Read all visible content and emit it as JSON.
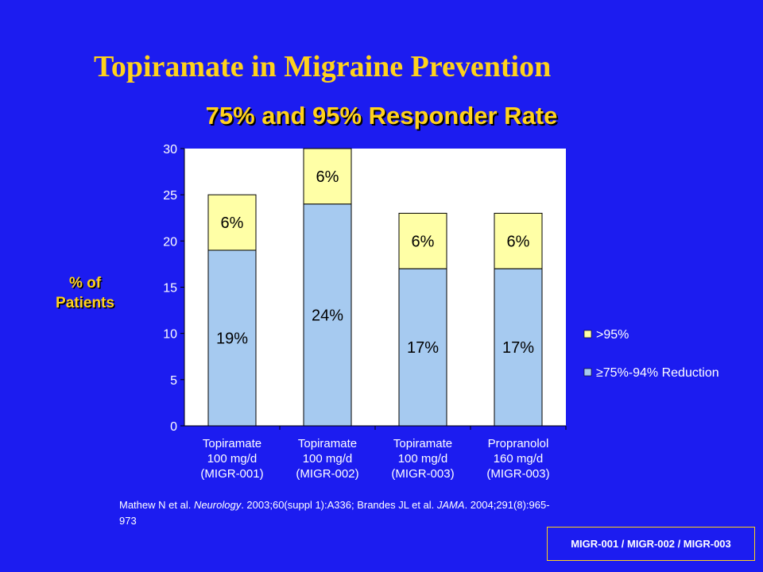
{
  "title": "Topiramate in Migraine Prevention",
  "citation": {
    "part1": "Mathew N et al. ",
    "journal1": "Neurology",
    "part2": ". 2003;60(suppl 1):A336; Brandes JL et al. ",
    "journal2": "JAMA",
    "part3": ". 2004;291(8):965-973"
  },
  "footer_label": "MIGR-001 / MIGR-002 / MIGR-003",
  "chart_data": {
    "type": "bar",
    "stacked": true,
    "title": "75% and 95% Responder Rate",
    "ylabel": "% of Patients",
    "ylabel_lines": [
      "% of",
      "Patients"
    ],
    "ylim": [
      0,
      30
    ],
    "yticks": [
      0,
      5,
      10,
      15,
      20,
      25,
      30
    ],
    "categories": [
      [
        "Topiramate",
        "100 mg/d",
        "(MIGR-001)"
      ],
      [
        "Topiramate",
        "100 mg/d",
        "(MIGR-002)"
      ],
      [
        "Topiramate",
        "100 mg/d",
        "(MIGR-003)"
      ],
      [
        "Propranolol",
        "160 mg/d",
        "(MIGR-003)"
      ]
    ],
    "series": [
      {
        "name": "≥75%-94% Reduction",
        "values": [
          19,
          24,
          17,
          17
        ],
        "labels": [
          "19%",
          "24%",
          "17%",
          "17%"
        ],
        "color": "#a6caf0"
      },
      {
        "name": ">95%",
        "values": [
          6,
          6,
          6,
          6
        ],
        "labels": [
          "6%",
          "6%",
          "6%",
          "6%"
        ],
        "color": "#ffffa6"
      }
    ],
    "legend_position": "right",
    "grid": false,
    "colors": {
      "plot_bg": "#ffffff",
      "axis": "#000000"
    }
  }
}
